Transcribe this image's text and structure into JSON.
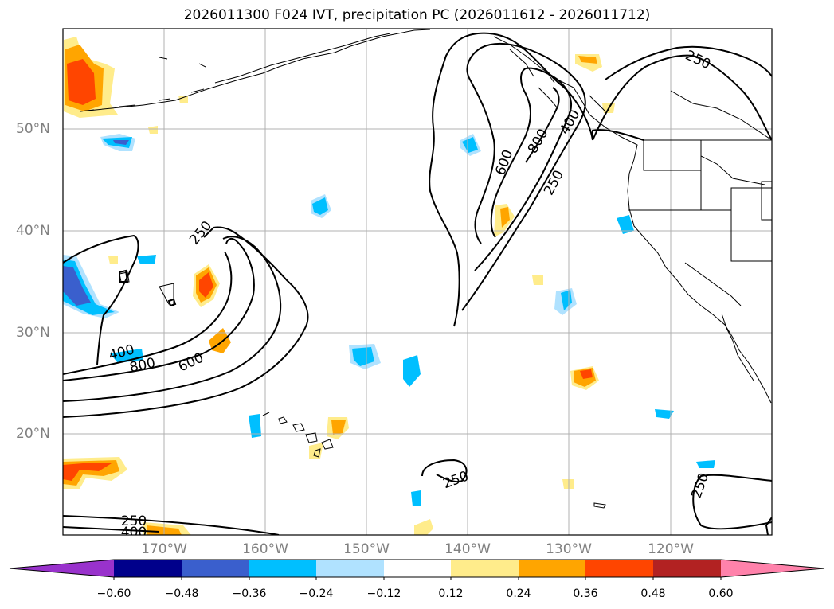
{
  "title": "2026011300 F024 IVT, precipitation PC (2026011612 - 2026011712)",
  "lon_labels": [
    "170°W",
    "160°W",
    "150°W",
    "140°W",
    "130°W",
    "120°W"
  ],
  "lat_labels": [
    "50°N",
    "40°N",
    "30°N",
    "20°N"
  ],
  "contour_labels": [
    "250",
    "250",
    "600",
    "400",
    "800",
    "250",
    "400",
    "800",
    "600",
    "250",
    "250",
    "250",
    "400"
  ],
  "colorbar": {
    "ticks": [
      "−0.60",
      "−0.48",
      "−0.36",
      "−0.24",
      "−0.12",
      "0.12",
      "0.24",
      "0.36",
      "0.48",
      "0.60"
    ],
    "colors": [
      "#9932cc",
      "#00008b",
      "#3a5fcd",
      "#00bfff",
      "#b0e2ff",
      "#ffffff",
      "#ffec8b",
      "#ffa500",
      "#ff4500",
      "#b22222",
      "#ff82ab"
    ]
  },
  "colors": {
    "frame": "#000000",
    "grid": "#b0b0b0",
    "label": "#808080"
  }
}
